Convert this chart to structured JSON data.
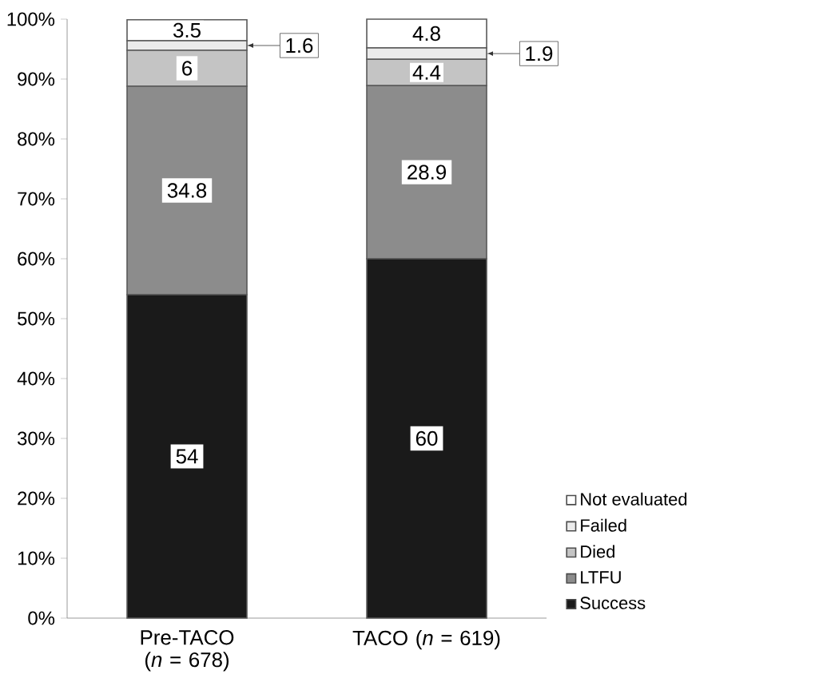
{
  "chart_data": {
    "type": "bar",
    "stacked": true,
    "data_labels": true,
    "legend": "right",
    "grid": false,
    "categories": [
      "Pre-TACO (*n* = 678)",
      "TACO (*n* = 619)"
    ],
    "ylim": [
      0,
      100
    ],
    "yticks": [
      {
        "value": 0,
        "label": "0%"
      },
      {
        "value": 10,
        "label": "10%"
      },
      {
        "value": 20,
        "label": "20%"
      },
      {
        "value": 30,
        "label": "30%"
      },
      {
        "value": 40,
        "label": "40%"
      },
      {
        "value": 50,
        "label": "50%"
      },
      {
        "value": 60,
        "label": "60%"
      },
      {
        "value": 70,
        "label": "70%"
      },
      {
        "value": 80,
        "label": "80%"
      },
      {
        "value": 90,
        "label": "90%"
      },
      {
        "value": 100,
        "label": "100%"
      }
    ],
    "series": [
      {
        "name": "Success",
        "color": "#1a1a1a",
        "values": [
          54,
          60
        ]
      },
      {
        "name": "LTFU",
        "color": "#8c8c8c",
        "values": [
          34.8,
          28.9
        ]
      },
      {
        "name": "Died",
        "color": "#c4c4c4",
        "values": [
          6,
          4.4
        ]
      },
      {
        "name": "Failed",
        "color": "#ebebeb",
        "values": [
          1.6,
          1.9
        ]
      },
      {
        "name": "Not evaluated",
        "color": "#ffffff",
        "values": [
          3.5,
          4.8
        ]
      }
    ]
  }
}
